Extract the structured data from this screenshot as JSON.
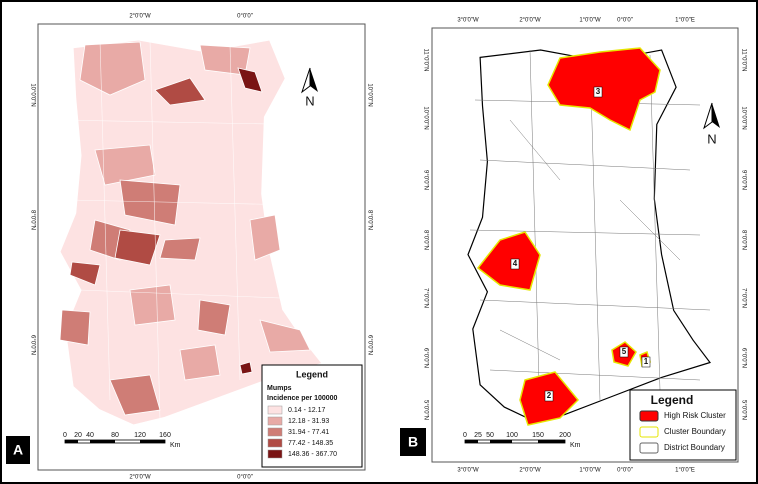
{
  "panel_a": {
    "label": "A",
    "north": "N",
    "lon_labels": [
      "2°0'0\"W",
      "0°0'0\""
    ],
    "lat_labels": [
      "10°0'0\"N",
      "8°0'0\"N",
      "6°0'0\"N"
    ],
    "legend": {
      "title": "Legend",
      "layer": "Mumps",
      "field": "Incidence per 100000",
      "classes": [
        {
          "label": "0.14 - 12.17",
          "color": "#fde2e2"
        },
        {
          "label": "12.18 - 31.93",
          "color": "#e8aaa6"
        },
        {
          "label": "31.94 - 77.41",
          "color": "#cf7d76"
        },
        {
          "label": "77.42 - 148.35",
          "color": "#b04b44"
        },
        {
          "label": "148.36 - 367.70",
          "color": "#7a1414"
        }
      ]
    },
    "scale": {
      "ticks": [
        0,
        20,
        40,
        80,
        120,
        160
      ],
      "unit": "Km"
    }
  },
  "panel_b": {
    "label": "B",
    "north": "N",
    "lon_labels": [
      "3°0'0\"W",
      "2°0'0\"W",
      "1°0'0\"W",
      "0°0'0\"",
      "1°0'0\"E"
    ],
    "lat_labels": [
      "11°0'0\"N",
      "10°0'0\"N",
      "9°0'0\"N",
      "8°0'0\"N",
      "7°0'0\"N",
      "6°0'0\"N",
      "5°0'0\"N"
    ],
    "clusters": [
      "1",
      "2",
      "3",
      "4",
      "5"
    ],
    "legend": {
      "title": "Legend",
      "items": [
        {
          "label": "High Risk Cluster",
          "color": "#ff0000",
          "border": "#333333"
        },
        {
          "label": "Cluster Boundary",
          "color": "#ffffff",
          "border": "#e6e600"
        },
        {
          "label": "District Boundary",
          "color": "#ffffff",
          "border": "#666666"
        }
      ]
    },
    "scale": {
      "ticks": [
        0,
        25,
        50,
        100,
        150,
        200
      ],
      "unit": "Km"
    }
  }
}
